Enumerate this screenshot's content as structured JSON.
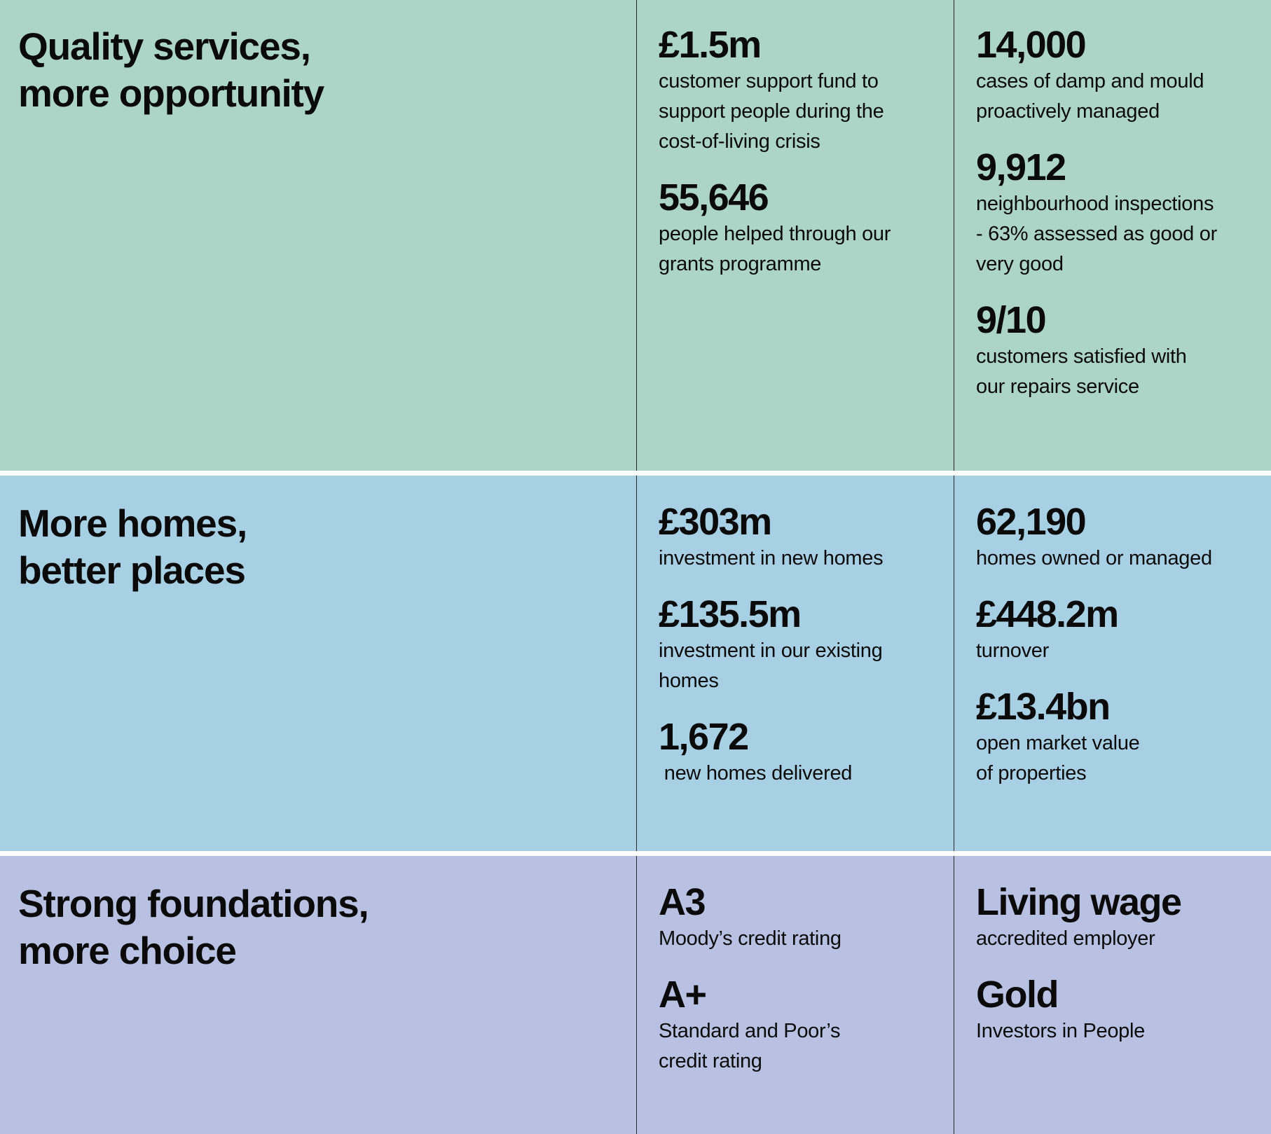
{
  "colors": {
    "row1": "#acd5c8",
    "row2": "#a8d0e4",
    "row3": "#b8c1e2"
  },
  "sections": [
    {
      "title_lines": [
        "Quality services,",
        "more opportunity"
      ],
      "columns": [
        [
          {
            "value": "£1.5m",
            "desc_lines": [
              "customer support fund to",
              "support people during the",
              "cost-of-living crisis"
            ]
          },
          {
            "value": "55,646",
            "desc_lines": [
              "people helped through our",
              "grants programme"
            ]
          }
        ],
        [
          {
            "value": "14,000",
            "desc_lines": [
              "cases of damp and mould",
              "proactively managed"
            ]
          },
          {
            "value": "9,912",
            "desc_lines": [
              "neighbourhood inspections",
              "- 63% assessed as good or",
              "very good"
            ]
          },
          {
            "value": "9/10",
            "desc_lines": [
              "customers satisfied with",
              "our repairs service"
            ]
          }
        ]
      ]
    },
    {
      "title_lines": [
        "More homes,",
        "better places"
      ],
      "columns": [
        [
          {
            "value": "£303m",
            "desc_lines": [
              "investment in new homes"
            ]
          },
          {
            "value": "£135.5m",
            "desc_lines": [
              "investment in our existing",
              "homes"
            ]
          },
          {
            "value": "1,672",
            "desc_lines": [
              " new homes delivered"
            ]
          }
        ],
        [
          {
            "value": "62,190",
            "desc_lines": [
              "homes owned or managed"
            ]
          },
          {
            "value": "£448.2m",
            "desc_lines": [
              "turnover"
            ]
          },
          {
            "value": "£13.4bn",
            "desc_lines": [
              "open market value",
              "of properties"
            ]
          }
        ]
      ]
    },
    {
      "title_lines": [
        "Strong foundations,",
        "more choice"
      ],
      "columns": [
        [
          {
            "value": "A3",
            "desc_lines": [
              "Moody’s credit rating"
            ]
          },
          {
            "value": "A+",
            "desc_lines": [
              "Standard and Poor’s",
              "credit rating"
            ]
          }
        ],
        [
          {
            "value": "Living wage",
            "desc_lines": [
              "accredited employer"
            ]
          },
          {
            "value": "Gold",
            "desc_lines": [
              "Investors in People"
            ]
          }
        ]
      ]
    }
  ]
}
